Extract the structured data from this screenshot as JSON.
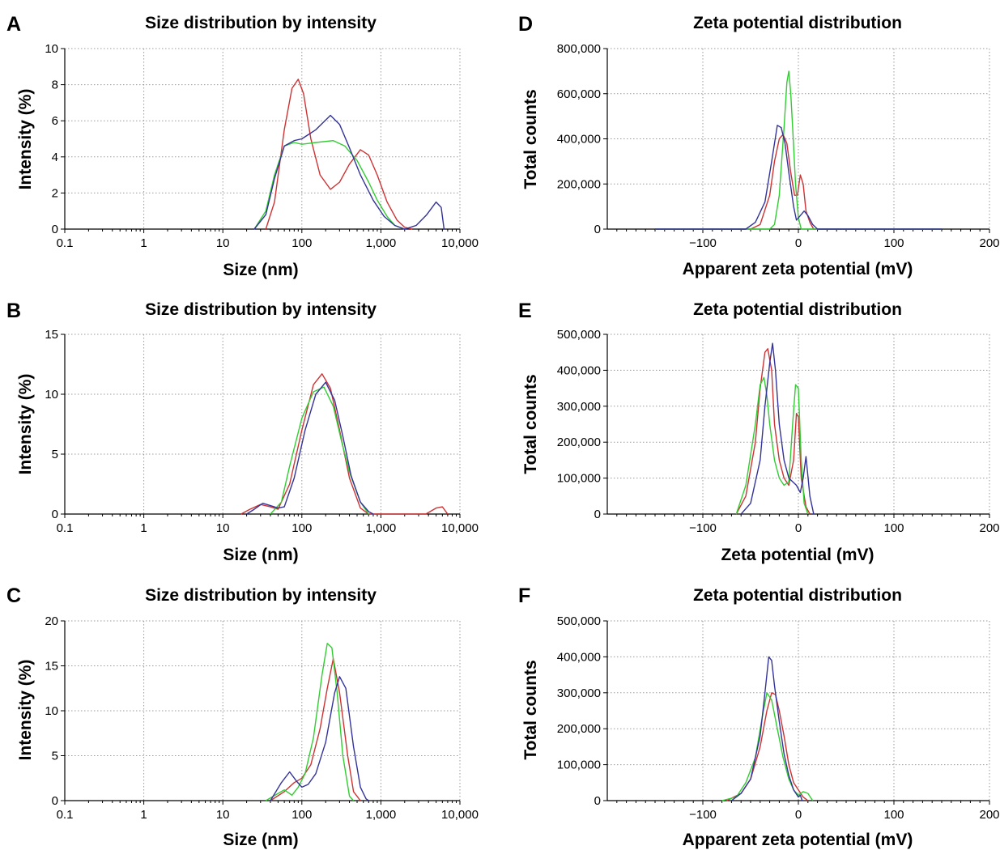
{
  "colors": {
    "red": "#cc3333",
    "green": "#33cc33",
    "blue": "#333399"
  },
  "chart_data": [
    {
      "panel": "A",
      "type": "line",
      "title": "Size distribution by intensity",
      "xlabel": "Size (nm)",
      "ylabel": "Intensity (%)",
      "xscale": "log",
      "xlim": [
        0.1,
        10000
      ],
      "ylim": [
        0,
        10
      ],
      "xticks": [
        0.1,
        1,
        10,
        100,
        1000,
        10000
      ],
      "xtick_labels": [
        "0.1",
        "1",
        "10",
        "100",
        "1,000",
        "10,000"
      ],
      "yticks": [
        0,
        2,
        4,
        6,
        8,
        10
      ],
      "ytick_labels": [
        "0",
        "2",
        "4",
        "6",
        "8",
        "10"
      ],
      "grid": true,
      "series": [
        {
          "color": "red",
          "x": [
            35,
            45,
            60,
            75,
            90,
            105,
            130,
            170,
            230,
            300,
            400,
            550,
            700,
            900,
            1200,
            1600,
            2000,
            2500
          ],
          "y": [
            0,
            1.5,
            5.5,
            7.8,
            8.3,
            7.5,
            5.0,
            3.0,
            2.2,
            2.6,
            3.6,
            4.4,
            4.1,
            3.0,
            1.5,
            0.5,
            0.1,
            0
          ]
        },
        {
          "color": "green",
          "x": [
            25,
            35,
            45,
            60,
            80,
            100,
            150,
            250,
            350,
            500,
            700,
            900,
            1200,
            1500,
            2000
          ],
          "y": [
            0,
            1.0,
            3.0,
            4.6,
            4.8,
            4.7,
            4.8,
            4.9,
            4.6,
            3.8,
            2.6,
            1.6,
            0.7,
            0.2,
            0
          ]
        },
        {
          "color": "blue",
          "x": [
            25,
            35,
            45,
            60,
            80,
            100,
            150,
            230,
            300,
            400,
            550,
            800,
            1100,
            1500,
            2000,
            2800,
            3800,
            5000,
            5800,
            6300
          ],
          "y": [
            0,
            0.8,
            2.8,
            4.6,
            4.9,
            5.0,
            5.5,
            6.3,
            5.8,
            4.5,
            3.0,
            1.6,
            0.7,
            0.2,
            0,
            0.2,
            0.8,
            1.5,
            1.2,
            0
          ]
        }
      ]
    },
    {
      "panel": "B",
      "type": "line",
      "title": "Size distribution by intensity",
      "xlabel": "Size (nm)",
      "ylabel": "Intensity (%)",
      "xscale": "log",
      "xlim": [
        0.1,
        10000
      ],
      "ylim": [
        0,
        15
      ],
      "xticks": [
        0.1,
        1,
        10,
        100,
        1000,
        10000
      ],
      "xtick_labels": [
        "0.1",
        "1",
        "10",
        "100",
        "1,000",
        "10,000"
      ],
      "yticks": [
        0,
        5,
        10,
        15
      ],
      "ytick_labels": [
        "0",
        "5",
        "10",
        "15"
      ],
      "grid": true,
      "series": [
        {
          "color": "red",
          "x": [
            17,
            22,
            30,
            40,
            50,
            70,
            100,
            140,
            180,
            230,
            300,
            400,
            550,
            700,
            3700,
            5000,
            6000,
            7000
          ],
          "y": [
            0,
            0.4,
            0.8,
            0.6,
            0.4,
            2.5,
            7.0,
            10.8,
            11.7,
            10.5,
            7.0,
            3.0,
            0.5,
            0,
            0,
            0.5,
            0.6,
            0
          ]
        },
        {
          "color": "green",
          "x": [
            40,
            55,
            70,
            100,
            140,
            190,
            250,
            320,
            400,
            550,
            700
          ],
          "y": [
            0,
            1.0,
            4.0,
            8.0,
            10.2,
            10.6,
            9.0,
            6.0,
            3.5,
            1.0,
            0
          ]
        },
        {
          "color": "blue",
          "x": [
            20,
            25,
            32,
            40,
            50,
            60,
            80,
            110,
            150,
            200,
            260,
            330,
            420,
            550,
            700,
            800
          ],
          "y": [
            0,
            0.4,
            0.9,
            0.7,
            0.5,
            0.6,
            3.0,
            7.0,
            10.0,
            11.0,
            9.5,
            6.5,
            3.2,
            1.0,
            0.2,
            0
          ]
        }
      ]
    },
    {
      "panel": "C",
      "type": "line",
      "title": "Size distribution by intensity",
      "xlabel": "Size (nm)",
      "ylabel": "Intensity (%)",
      "xscale": "log",
      "xlim": [
        0.1,
        10000
      ],
      "ylim": [
        0,
        20
      ],
      "xticks": [
        0.1,
        1,
        10,
        100,
        1000,
        10000
      ],
      "xtick_labels": [
        "0.1",
        "1",
        "10",
        "100",
        "1,000",
        "10,000"
      ],
      "yticks": [
        0,
        5,
        10,
        15,
        20
      ],
      "ytick_labels": [
        "0",
        "5",
        "10",
        "15",
        "20"
      ],
      "grid": true,
      "series": [
        {
          "color": "red",
          "x": [
            40,
            60,
            80,
            100,
            130,
            170,
            210,
            250,
            300,
            380,
            450,
            550
          ],
          "y": [
            0,
            1.0,
            2.0,
            2.5,
            4.0,
            8.0,
            12.5,
            15.8,
            12.0,
            5.0,
            1.0,
            0
          ]
        },
        {
          "color": "green",
          "x": [
            35,
            50,
            60,
            75,
            90,
            110,
            140,
            180,
            210,
            240,
            280,
            330,
            400,
            450
          ],
          "y": [
            0,
            0.8,
            1.2,
            0.6,
            1.5,
            3.0,
            7.0,
            14.0,
            17.5,
            17.0,
            12.0,
            5.0,
            0.5,
            0
          ]
        },
        {
          "color": "blue",
          "x": [
            40,
            55,
            70,
            85,
            100,
            120,
            150,
            200,
            260,
            300,
            360,
            450,
            550,
            650,
            700
          ],
          "y": [
            0,
            2.0,
            3.2,
            2.2,
            1.5,
            1.8,
            3.0,
            6.5,
            12.0,
            13.8,
            12.5,
            6.0,
            1.5,
            0.2,
            0
          ]
        }
      ]
    },
    {
      "panel": "D",
      "type": "line",
      "title": "Zeta potential distribution",
      "xlabel": "Apparent zeta potential (mV)",
      "ylabel": "Total counts",
      "xscale": "linear",
      "xlim": [
        -200,
        200
      ],
      "ylim": [
        0,
        800000
      ],
      "xticks": [
        -100,
        0,
        100,
        200
      ],
      "xtick_labels": [
        "−100",
        "0",
        "100",
        "200"
      ],
      "yticks": [
        0,
        200000,
        400000,
        600000,
        800000
      ],
      "ytick_labels": [
        "0",
        "200,000",
        "400,000",
        "600,000",
        "800,000"
      ],
      "grid": true,
      "series": [
        {
          "color": "red",
          "x": [
            -150,
            -50,
            -40,
            -30,
            -25,
            -20,
            -16,
            -12,
            -8,
            -4,
            -1,
            2,
            5,
            8,
            12,
            16,
            150
          ],
          "y": [
            0,
            0,
            20000,
            150000,
            300000,
            400000,
            420000,
            380000,
            250000,
            150000,
            150000,
            240000,
            200000,
            80000,
            30000,
            0,
            0
          ]
        },
        {
          "color": "green",
          "x": [
            -150,
            -30,
            -25,
            -20,
            -15,
            -12,
            -10,
            -8,
            -6,
            -3,
            0,
            3,
            150
          ],
          "y": [
            0,
            0,
            20000,
            150000,
            450000,
            650000,
            700000,
            600000,
            450000,
            200000,
            50000,
            0,
            0
          ]
        },
        {
          "color": "blue",
          "x": [
            -150,
            -55,
            -45,
            -35,
            -28,
            -22,
            -18,
            -14,
            -10,
            -5,
            -2,
            2,
            6,
            10,
            15,
            20,
            150
          ],
          "y": [
            0,
            0,
            30000,
            120000,
            300000,
            460000,
            450000,
            380000,
            250000,
            100000,
            40000,
            60000,
            80000,
            60000,
            20000,
            0,
            0
          ]
        }
      ]
    },
    {
      "panel": "E",
      "type": "line",
      "title": "Zeta potential distribution",
      "xlabel": "Zeta potential (mV)",
      "ylabel": "Total counts",
      "xscale": "linear",
      "xlim": [
        -200,
        200
      ],
      "ylim": [
        0,
        500000
      ],
      "xticks": [
        -100,
        0,
        100,
        200
      ],
      "xtick_labels": [
        "−100",
        "0",
        "100",
        "200"
      ],
      "yticks": [
        0,
        100000,
        200000,
        300000,
        400000,
        500000
      ],
      "ytick_labels": [
        "0",
        "100,000",
        "200,000",
        "300,000",
        "400,000",
        "500,000"
      ],
      "grid": true,
      "series": [
        {
          "color": "red",
          "x": [
            -65,
            -55,
            -45,
            -40,
            -35,
            -32,
            -28,
            -25,
            -20,
            -15,
            -10,
            -5,
            -2,
            0,
            3,
            8,
            12
          ],
          "y": [
            0,
            50000,
            200000,
            350000,
            450000,
            460000,
            400000,
            250000,
            150000,
            100000,
            80000,
            150000,
            280000,
            270000,
            100000,
            20000,
            0
          ]
        },
        {
          "color": "green",
          "x": [
            -65,
            -55,
            -45,
            -40,
            -36,
            -33,
            -30,
            -25,
            -20,
            -15,
            -10,
            -6,
            -3,
            0,
            3,
            6,
            10
          ],
          "y": [
            0,
            80000,
            250000,
            360000,
            380000,
            330000,
            250000,
            150000,
            100000,
            80000,
            90000,
            250000,
            360000,
            350000,
            150000,
            30000,
            0
          ]
        },
        {
          "color": "blue",
          "x": [
            -60,
            -50,
            -40,
            -35,
            -30,
            -27,
            -24,
            -20,
            -15,
            -10,
            -6,
            -2,
            2,
            5,
            8,
            12,
            16
          ],
          "y": [
            0,
            30000,
            150000,
            300000,
            420000,
            475000,
            400000,
            250000,
            150000,
            100000,
            90000,
            80000,
            60000,
            100000,
            160000,
            50000,
            0
          ]
        }
      ]
    },
    {
      "panel": "F",
      "type": "line",
      "title": "Zeta potential distribution",
      "xlabel": "Apparent zeta potential (mV)",
      "ylabel": "Total counts",
      "xscale": "linear",
      "xlim": [
        -200,
        200
      ],
      "ylim": [
        0,
        500000
      ],
      "xticks": [
        -100,
        0,
        100,
        200
      ],
      "xtick_labels": [
        "−100",
        "0",
        "100",
        "200"
      ],
      "yticks": [
        0,
        100000,
        200000,
        300000,
        400000,
        500000
      ],
      "ytick_labels": [
        "0",
        "100,000",
        "200,000",
        "300,000",
        "400,000",
        "500,000"
      ],
      "grid": true,
      "series": [
        {
          "color": "red",
          "x": [
            -75,
            -60,
            -50,
            -40,
            -33,
            -28,
            -24,
            -20,
            -15,
            -10,
            -5,
            0,
            5,
            10
          ],
          "y": [
            0,
            20000,
            60000,
            150000,
            250000,
            300000,
            295000,
            250000,
            180000,
            100000,
            50000,
            30000,
            10000,
            0
          ]
        },
        {
          "color": "green",
          "x": [
            -80,
            -65,
            -55,
            -45,
            -38,
            -33,
            -28,
            -22,
            -16,
            -10,
            -5,
            0,
            5,
            10,
            15
          ],
          "y": [
            0,
            10000,
            50000,
            120000,
            230000,
            300000,
            280000,
            200000,
            120000,
            60000,
            30000,
            15000,
            25000,
            20000,
            0
          ]
        },
        {
          "color": "blue",
          "x": [
            -70,
            -60,
            -50,
            -40,
            -35,
            -31,
            -28,
            -25,
            -20,
            -15,
            -10,
            -5,
            0,
            2,
            4
          ],
          "y": [
            0,
            20000,
            60000,
            180000,
            300000,
            400000,
            390000,
            320000,
            220000,
            130000,
            70000,
            30000,
            10000,
            15000,
            0
          ]
        }
      ]
    }
  ]
}
